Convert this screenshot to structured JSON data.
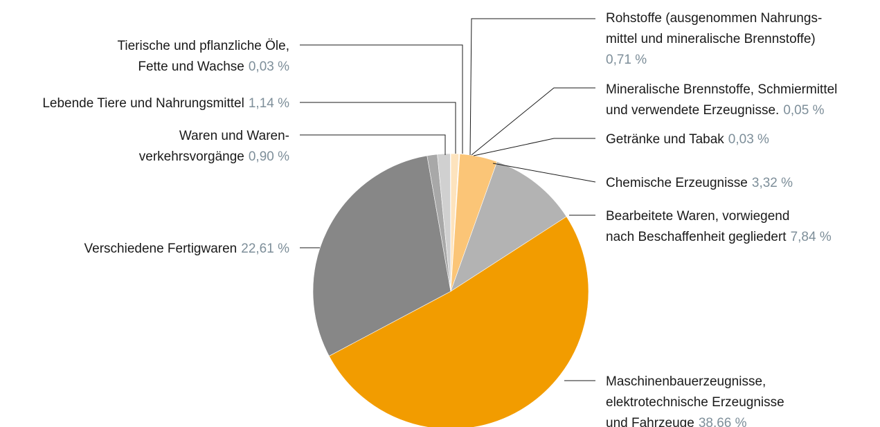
{
  "chart_data": {
    "type": "pie",
    "categories": [
      [
        "Rohstoffe (ausgenommen Nahrungs-",
        "mittel und mineralische Brennstoffe)"
      ],
      [
        "Mineralische Brennstoffe, Schmiermittel",
        "und verwendete Erzeugnisse."
      ],
      [
        "Getränke und Tabak"
      ],
      [
        "Chemische Erzeugnisse"
      ],
      [
        "Bearbeitete Waren, vorwiegend",
        "nach Beschaffenheit gegliedert"
      ],
      [
        "Maschinenbauerzeugnisse,",
        "elektrotechnische Erzeugnisse",
        "und Fahrzeuge"
      ],
      [
        "Verschiedene Fertigwaren"
      ],
      [
        "Waren und Waren-",
        "verkehrsvorgänge"
      ],
      [
        "Lebende Tiere und Nahrungsmittel"
      ],
      [
        "Tierische und pflanzliche Öle,",
        "Fette und Wachse"
      ]
    ],
    "values": [
      0.71,
      0.05,
      0.03,
      3.32,
      7.84,
      38.66,
      22.61,
      0.9,
      1.14,
      0.03
    ],
    "value_labels": [
      "0,71 %",
      "0,05 %",
      "0,03 %",
      "3,32 %",
      "7,84 %",
      "38,66 %",
      "22,61 %",
      "0,90 %",
      "1,14 %",
      "0,03 %"
    ],
    "colors": [
      "#fde3bd",
      "#f8cf94",
      "#f6b85c",
      "#fbc577",
      "#b3b3b3",
      "#f29c00",
      "#878787",
      "#a8a8a8",
      "#d0d0d0",
      "#e4e4e4"
    ]
  }
}
